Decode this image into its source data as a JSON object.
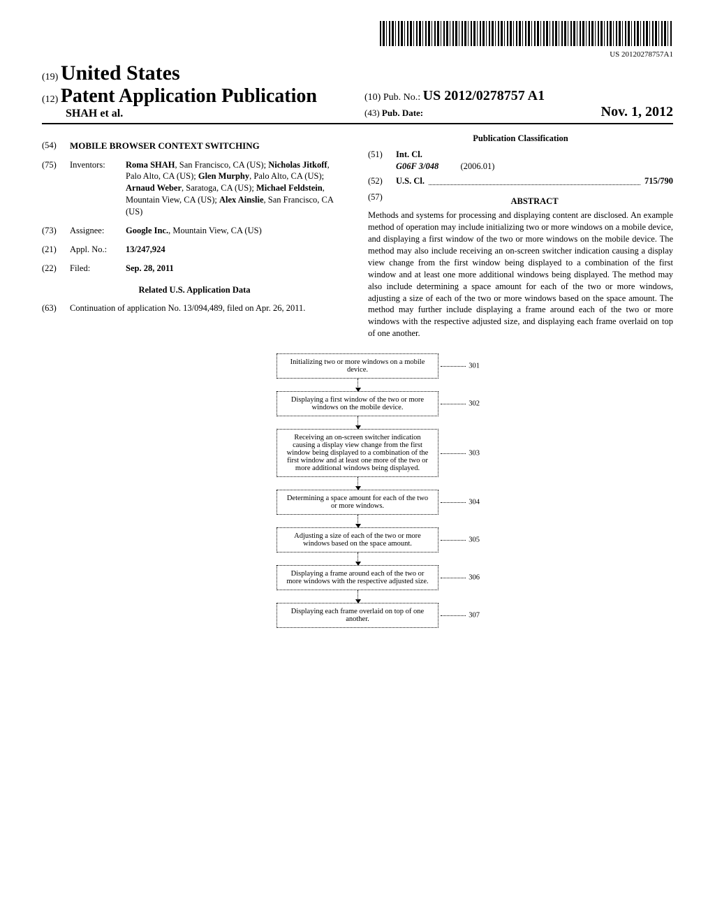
{
  "barcode_label": "US 20120278757A1",
  "header": {
    "country_code": "(19)",
    "country_name": "United States",
    "pub_code": "(12)",
    "pub_type": "Patent Application Publication",
    "authors_line": "SHAH et al.",
    "pubno_code": "(10)",
    "pubno_label": "Pub. No.:",
    "pubno_value": "US 2012/0278757 A1",
    "pubdate_code": "(43)",
    "pubdate_label": "Pub. Date:",
    "pubdate_value": "Nov. 1, 2012"
  },
  "left_col": {
    "title_code": "(54)",
    "title": "MOBILE BROWSER CONTEXT SWITCHING",
    "inventors_code": "(75)",
    "inventors_label": "Inventors:",
    "inventors": "Roma SHAH, San Francisco, CA (US); Nicholas Jitkoff, Palo Alto, CA (US); Glen Murphy, Palo Alto, CA (US); Arnaud Weber, Saratoga, CA (US); Michael Feldstein, Mountain View, CA (US); Alex Ainslie, San Francisco, CA (US)",
    "assignee_code": "(73)",
    "assignee_label": "Assignee:",
    "assignee": "Google Inc., Mountain View, CA (US)",
    "applno_code": "(21)",
    "applno_label": "Appl. No.:",
    "applno": "13/247,924",
    "filed_code": "(22)",
    "filed_label": "Filed:",
    "filed": "Sep. 28, 2011",
    "related_title": "Related U.S. Application Data",
    "continuation_code": "(63)",
    "continuation": "Continuation of application No. 13/094,489, filed on Apr. 26, 2011."
  },
  "right_col": {
    "classification_title": "Publication Classification",
    "intcl_code": "(51)",
    "intcl_label": "Int. Cl.",
    "intcl_class": "G06F 3/048",
    "intcl_date": "(2006.01)",
    "uscl_code": "(52)",
    "uscl_label": "U.S. Cl.",
    "uscl_value": "715/790",
    "abstract_code": "(57)",
    "abstract_label": "ABSTRACT",
    "abstract": "Methods and systems for processing and displaying content are disclosed. An example method of operation may include initializing two or more windows on a mobile device, and displaying a first window of the two or more windows on the mobile device. The method may also include receiving an on-screen switcher indication causing a display view change from the first window being displayed to a combination of the first window and at least one more additional windows being displayed. The method may also include determining a space amount for each of the two or more windows, adjusting a size of each of the two or more windows based on the space amount. The method may further include displaying a frame around each of the two or more windows with the respective adjusted size, and displaying each frame overlaid on top of one another."
  },
  "flowchart": {
    "steps": [
      {
        "label": "301",
        "text": "Initializing two or more windows on a mobile device."
      },
      {
        "label": "302",
        "text": "Displaying a first window of the two or more windows on the mobile device."
      },
      {
        "label": "303",
        "text": "Receiving an on-screen switcher indication causing a display view change from the first window being displayed to a combination of the first window and at least one more of the two or more additional windows being displayed."
      },
      {
        "label": "304",
        "text": "Determining a space amount for each of the two or more windows."
      },
      {
        "label": "305",
        "text": "Adjusting a size of each of the two or more windows based on the space amount."
      },
      {
        "label": "306",
        "text": "Displaying a frame around each of the two or more windows with the respective adjusted size."
      },
      {
        "label": "307",
        "text": "Displaying each frame overlaid on top of one another."
      }
    ]
  }
}
